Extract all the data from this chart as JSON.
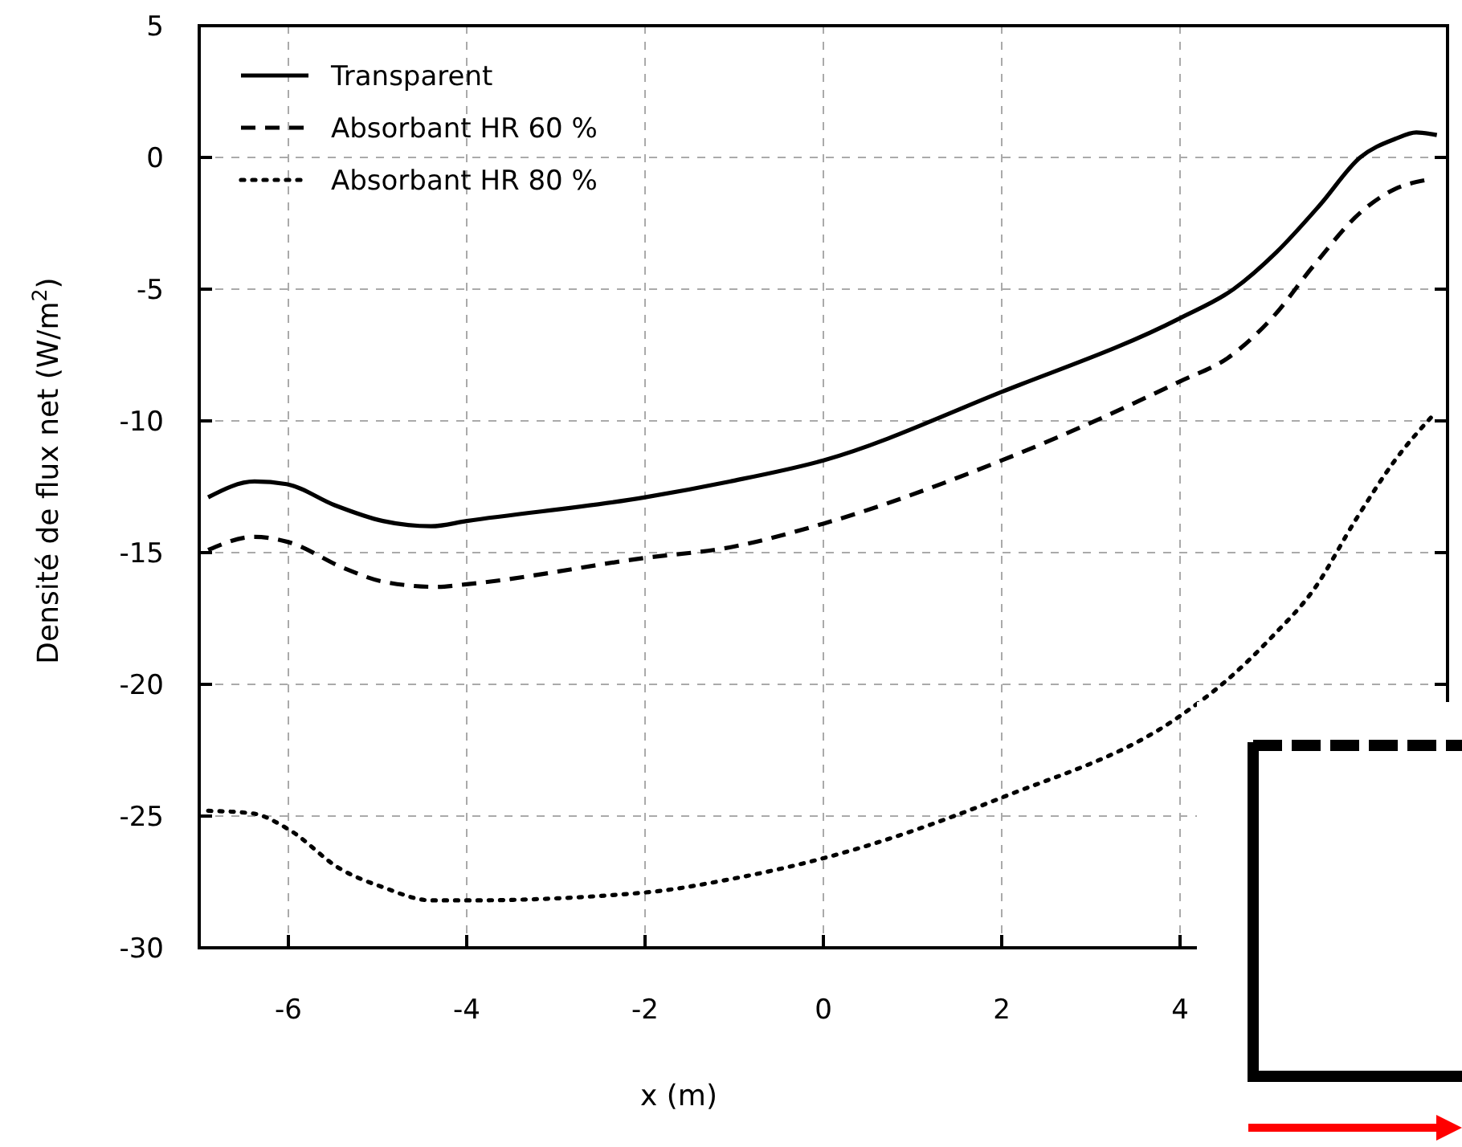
{
  "chart_data": {
    "type": "line",
    "xlabel": "x (m)",
    "ylabel": "Densité de flux net (W/m$^{2}$)",
    "xlim": [
      -7,
      7
    ],
    "ylim": [
      -30,
      5
    ],
    "xticks": [
      -6,
      -4,
      -2,
      0,
      2,
      4
    ],
    "yticks": [
      -30,
      -25,
      -20,
      -15,
      -10,
      -5,
      0,
      5
    ],
    "grid": true,
    "legend": "top left",
    "series": [
      {
        "name": "Transparent",
        "color": "#000000",
        "line_style": "solid",
        "x": [
          -6.9,
          -6.38,
          -6.02,
          -5.48,
          -4.94,
          -4.4,
          -4,
          -2,
          -1.05,
          0,
          2,
          4,
          4.6,
          5.08,
          5.57,
          6.02,
          6.41,
          6.65,
          6.88
        ],
        "values": [
          -12.9,
          -12.3,
          -12.4,
          -13.2,
          -13.8,
          -14,
          -13.8,
          -12.9,
          -12.3,
          -11.5,
          -8.9,
          -6.1,
          -5,
          -3.6,
          -1.8,
          0,
          0.7,
          0.95,
          0.85
        ]
      },
      {
        "name": "Absorbant HR 60 %",
        "color": "#000000",
        "line_style": "dashed",
        "x": [
          -6.9,
          -6.38,
          -6,
          -5.37,
          -4.94,
          -4.34,
          -4,
          -2,
          -1.05,
          0,
          2,
          4,
          4.54,
          5.03,
          5.5,
          6.02,
          6.41,
          6.77
        ],
        "values": [
          -14.9,
          -14.4,
          -14.6,
          -15.6,
          -16.1,
          -16.3,
          -16.2,
          -15.2,
          -14.8,
          -13.9,
          -11.5,
          -8.5,
          -7.6,
          -6.1,
          -4.1,
          -2.1,
          -1.2,
          -0.85
        ]
      },
      {
        "name": "Absorbant HR 80 %",
        "color": "#000000",
        "line_style": "dotted",
        "x": [
          -6.9,
          -6.4,
          -6,
          -5.42,
          -4.94,
          -4.4,
          -4,
          -2,
          -1.05,
          0,
          2,
          4,
          4.54,
          5.03,
          5.5,
          5.98,
          6.41,
          6.86
        ],
        "values": [
          -24.8,
          -24.9,
          -25.5,
          -27,
          -27.7,
          -28.2,
          -28.2,
          -27.9,
          -27.4,
          -26.6,
          -24.3,
          -21.2,
          -19.8,
          -18.2,
          -16.4,
          -13.7,
          -11.5,
          -9.7
        ]
      }
    ]
  }
}
